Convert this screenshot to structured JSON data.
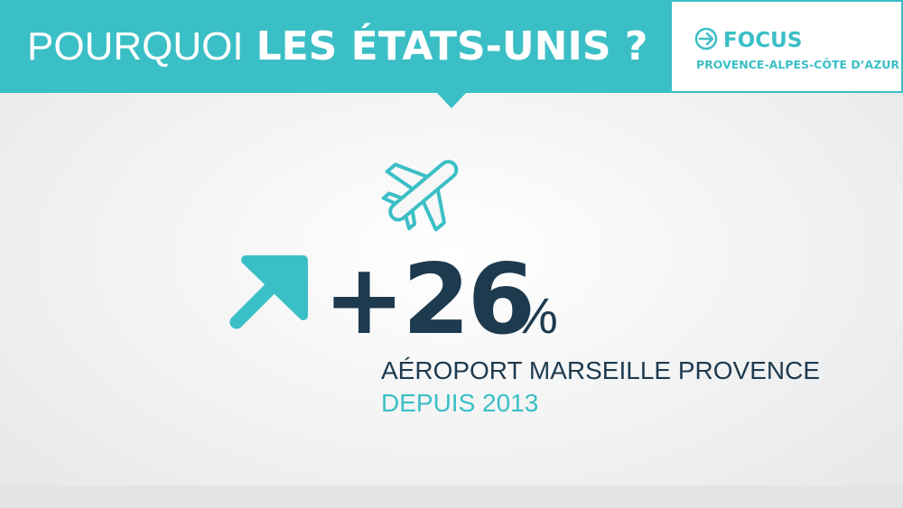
{
  "header": {
    "title_light": "POURQUOI",
    "title_bold": "LES ÉTATS-UNIS ?"
  },
  "focus": {
    "label": "FOCUS",
    "region": "PROVENCE-ALPES-CÔTE D’AZUR"
  },
  "stat": {
    "value": "+26",
    "unit": "%",
    "caption": "AÉROPORT MARSEILLE PROVENCE",
    "period": "DEPUIS 2013"
  }
}
